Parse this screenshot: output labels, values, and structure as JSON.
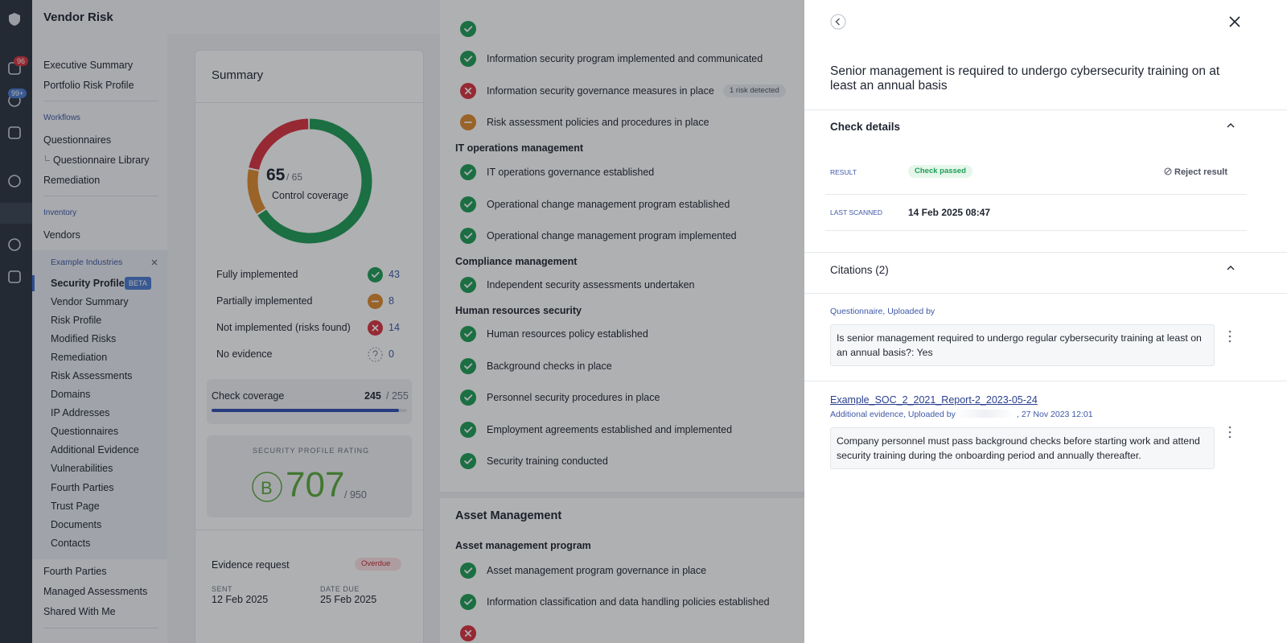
{
  "header": {
    "title": "Vendor Risk"
  },
  "nav": {
    "badges": [
      "96",
      "99+"
    ]
  },
  "sidebar": {
    "top_links": [
      "Executive Summary",
      "Portfolio Risk Profile"
    ],
    "workflows": {
      "heading": "Workflows",
      "links": [
        "Questionnaires",
        "Questionnaire Library",
        "Remediation"
      ]
    },
    "inventory": {
      "heading": "Inventory",
      "links": [
        "Vendors"
      ]
    },
    "vendor": {
      "name": "Example Industries",
      "active": "Security Profile",
      "badge": "BETA",
      "links": [
        "Vendor Summary",
        "Risk Profile",
        "Modified Risks",
        "Remediation",
        "Risk Assessments",
        "Domains",
        "IP Addresses",
        "Questionnaires",
        "Additional Evidence",
        "Vulnerabilities",
        "Fourth Parties",
        "Trust Page",
        "Documents",
        "Contacts"
      ]
    },
    "bottom_links": [
      "Fourth Parties",
      "Managed Assessments",
      "Shared With Me"
    ]
  },
  "summary": {
    "title": "Summary",
    "coverage": {
      "value": 65,
      "total_label": "/ 65",
      "label": "Control coverage"
    },
    "rows": [
      {
        "label": "Fully implemented",
        "status": "pass",
        "color": "#1f9d55",
        "count": 43
      },
      {
        "label": "Partially implemented",
        "status": "partial",
        "color": "#e08a2c",
        "count": 8
      },
      {
        "label": "Not implemented (risks found)",
        "status": "fail",
        "color": "#d9323f",
        "count": 14
      },
      {
        "label": "No evidence",
        "status": "none",
        "color": "#8a8f99",
        "count": 0
      }
    ],
    "check_coverage": {
      "label": "Check coverage",
      "value": 245,
      "total_label": "/ 255",
      "max": 255
    },
    "rating": {
      "label": "SECURITY PROFILE RATING",
      "grade": "B",
      "score": 707,
      "max_label": "/ 950"
    },
    "evidence_request": {
      "title": "Evidence request",
      "status": "Overdue",
      "sent_label": "SENT",
      "sent": "12 Feb 2025",
      "due_label": "DATE DUE",
      "due": "25 Feb 2025"
    }
  },
  "checks": {
    "entries": [
      {
        "text": "Information security program implemented and communicated",
        "status": "pass"
      },
      {
        "text": "Information security governance measures in place",
        "status": "fail",
        "tag": "1 risk detected"
      },
      {
        "text": "Risk assessment policies and procedures in place",
        "status": "partial"
      },
      {
        "heading": "IT operations management"
      },
      {
        "text": "IT operations governance established",
        "status": "pass"
      },
      {
        "text": "Operational change management program established",
        "status": "pass"
      },
      {
        "text": "Operational change management program implemented",
        "status": "pass"
      },
      {
        "heading": "Compliance management"
      },
      {
        "text": "Independent security assessments undertaken",
        "status": "pass"
      },
      {
        "heading": "Human resources security"
      },
      {
        "text": "Human resources policy established",
        "status": "pass"
      },
      {
        "text": "Background checks in place",
        "status": "pass"
      },
      {
        "text": "Personnel security procedures in place",
        "status": "pass"
      },
      {
        "text": "Employment agreements established and implemented",
        "status": "pass"
      },
      {
        "text": "Security training conducted",
        "status": "pass"
      }
    ]
  },
  "asset_management": {
    "title": "Asset Management",
    "entries": [
      {
        "heading": "Asset management program"
      },
      {
        "text": "Asset management program governance in place",
        "status": "pass"
      },
      {
        "text": "Information classification and data handling policies established",
        "status": "pass"
      }
    ]
  },
  "detail": {
    "title": "Senior management is required to undergo cybersecurity training on at least an annual basis",
    "check_details": {
      "heading": "Check details",
      "result_label": "RESULT",
      "result": "Check passed",
      "reject": "Reject result",
      "scanned_label": "LAST SCANNED",
      "scanned": "14 Feb 2025 08:47"
    },
    "citations": {
      "heading": "Citations (2)",
      "items": [
        {
          "source": "Questionnaire, Uploaded by",
          "quote": "Is senior management required to undergo regular cybersecurity training at least on an annual basis?: Yes"
        },
        {
          "link": "Example_SOC_2_2021_Report-2_2023-05-24",
          "source": "Additional evidence, Uploaded by",
          "date": ", 27 Nov 2023 12:01",
          "quote": "Company personnel must pass background checks before starting work and attend security training during the onboarding period and annually thereafter."
        }
      ]
    }
  }
}
